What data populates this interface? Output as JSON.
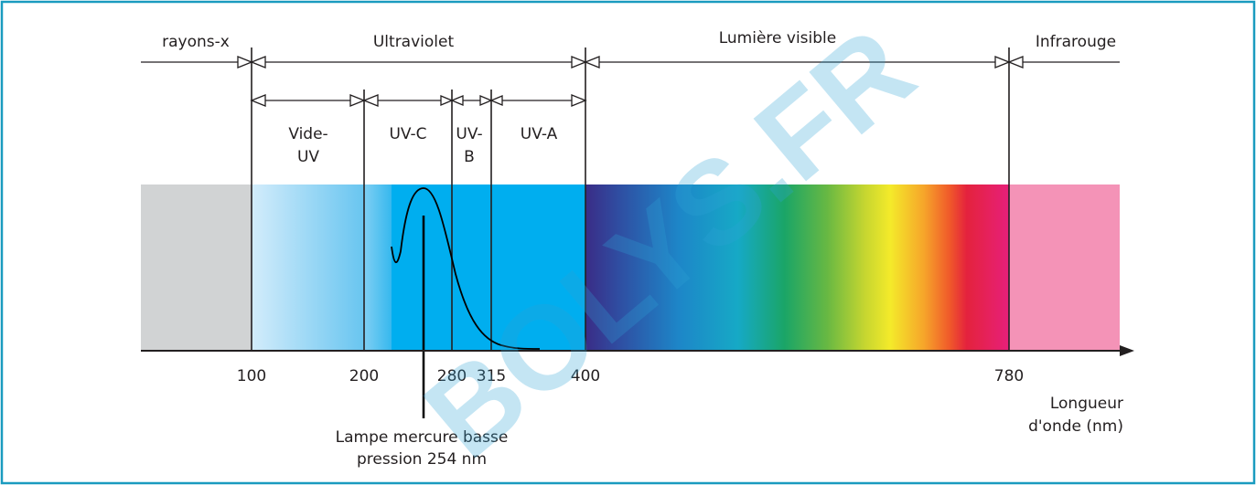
{
  "regions": {
    "xray": "rayons-x",
    "uv": "Ultraviolet",
    "visible": "Lumière visible",
    "ir": "Infrarouge"
  },
  "subregions": {
    "vuv_line1": "Vide-",
    "vuv_line2": "UV",
    "uvc": "UV-C",
    "uvb_line1": "UV-",
    "uvb_line2": "B",
    "uva": "UV-A"
  },
  "axis": {
    "ticks": [
      "100",
      "200",
      "280",
      "315",
      "400",
      "780"
    ],
    "label_line1": "Longueur",
    "label_line2": "d'onde (nm)"
  },
  "annotation": {
    "line1": "Lampe mercure basse",
    "line2": "pression 254 nm"
  },
  "watermark": "BOLYS.FR",
  "colors": {
    "frame": "#1a9bbf",
    "xray_band": "#d1d3d4",
    "uv_band": "#00aeef",
    "ir_band": "#f493b7"
  }
}
